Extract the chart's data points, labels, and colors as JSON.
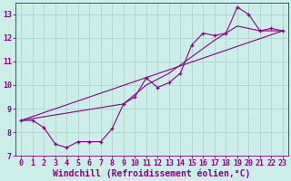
{
  "xlabel": "Windchill (Refroidissement éolien,°C)",
  "bg_color": "#cceee8",
  "line_color": "#880088",
  "grid_color": "#aacccc",
  "xlim": [
    -0.5,
    23.5
  ],
  "ylim": [
    7.0,
    13.5
  ],
  "xticks": [
    0,
    1,
    2,
    3,
    4,
    5,
    6,
    7,
    8,
    9,
    10,
    11,
    12,
    13,
    14,
    15,
    16,
    17,
    18,
    19,
    20,
    21,
    22,
    23
  ],
  "yticks": [
    7,
    8,
    9,
    10,
    11,
    12,
    13
  ],
  "line1_x": [
    0,
    1,
    2,
    3,
    4,
    5,
    6,
    7,
    8,
    9,
    10,
    11,
    12,
    13,
    14,
    15,
    16,
    17,
    18,
    19,
    20,
    21,
    22,
    23
  ],
  "line1_y": [
    8.5,
    8.5,
    8.2,
    7.5,
    7.35,
    7.6,
    7.6,
    7.6,
    8.15,
    9.2,
    9.5,
    10.3,
    9.9,
    10.1,
    10.5,
    11.7,
    12.2,
    12.1,
    12.2,
    13.3,
    13.0,
    12.3,
    12.4,
    12.3
  ],
  "line2_x": [
    0,
    23
  ],
  "line2_y": [
    8.5,
    12.3
  ],
  "line3_x": [
    0,
    9,
    11,
    13,
    15,
    17,
    19,
    21,
    23
  ],
  "line3_y": [
    8.5,
    9.2,
    10.0,
    10.5,
    11.2,
    11.9,
    12.5,
    12.3,
    12.3
  ],
  "font_size_tick": 6,
  "font_size_label": 7
}
